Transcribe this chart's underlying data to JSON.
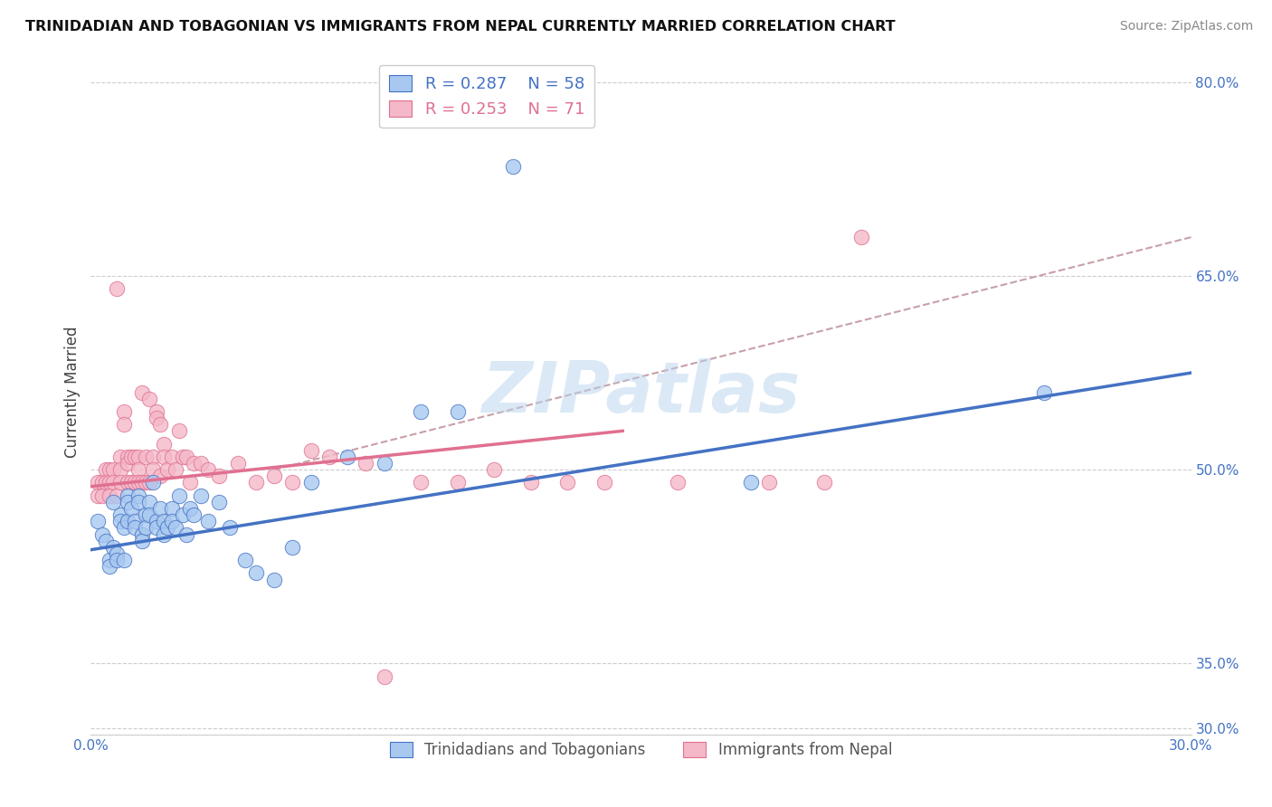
{
  "title": "TRINIDADIAN AND TOBAGONIAN VS IMMIGRANTS FROM NEPAL CURRENTLY MARRIED CORRELATION CHART",
  "source": "Source: ZipAtlas.com",
  "ylabel": "Currently Married",
  "xlim": [
    0.0,
    0.3
  ],
  "ylim": [
    0.295,
    0.825
  ],
  "xticks": [
    0.0,
    0.05,
    0.1,
    0.15,
    0.2,
    0.25,
    0.3
  ],
  "xticklabels": [
    "0.0%",
    "",
    "",
    "",
    "",
    "",
    "30.0%"
  ],
  "ytick_vals": [
    0.3,
    0.35,
    0.4,
    0.45,
    0.5,
    0.55,
    0.6,
    0.65,
    0.7,
    0.75,
    0.8
  ],
  "ytick_labels": [
    "30.0%",
    "35.0%",
    "",
    "",
    "50.0%",
    "",
    "",
    "65.0%",
    "",
    "",
    "80.0%"
  ],
  "blue_face": "#A8C8F0",
  "blue_edge": "#4472C4",
  "pink_face": "#F4B8C8",
  "pink_edge": "#E07090",
  "blue_line": "#4472C4",
  "pink_line": "#E07090",
  "dash_line": "#C8A0A8",
  "watermark": "ZIPatlas",
  "label_blue": "Trinidadians and Tobagonians",
  "label_pink": "Immigrants from Nepal",
  "blue_R": "0.287",
  "blue_N": "58",
  "pink_R": "0.253",
  "pink_N": "71",
  "blue_x": [
    0.002,
    0.003,
    0.004,
    0.005,
    0.005,
    0.006,
    0.006,
    0.007,
    0.007,
    0.008,
    0.008,
    0.009,
    0.009,
    0.01,
    0.01,
    0.01,
    0.011,
    0.012,
    0.012,
    0.013,
    0.013,
    0.014,
    0.014,
    0.015,
    0.015,
    0.016,
    0.016,
    0.017,
    0.018,
    0.018,
    0.019,
    0.02,
    0.02,
    0.021,
    0.022,
    0.022,
    0.023,
    0.024,
    0.025,
    0.026,
    0.027,
    0.028,
    0.03,
    0.032,
    0.035,
    0.038,
    0.042,
    0.045,
    0.05,
    0.055,
    0.06,
    0.07,
    0.08,
    0.09,
    0.1,
    0.115,
    0.18,
    0.26
  ],
  "blue_y": [
    0.46,
    0.45,
    0.445,
    0.43,
    0.425,
    0.475,
    0.44,
    0.435,
    0.43,
    0.465,
    0.46,
    0.455,
    0.43,
    0.48,
    0.475,
    0.46,
    0.47,
    0.46,
    0.455,
    0.48,
    0.475,
    0.45,
    0.445,
    0.465,
    0.455,
    0.475,
    0.465,
    0.49,
    0.46,
    0.455,
    0.47,
    0.46,
    0.45,
    0.455,
    0.47,
    0.46,
    0.455,
    0.48,
    0.465,
    0.45,
    0.47,
    0.465,
    0.48,
    0.46,
    0.475,
    0.455,
    0.43,
    0.42,
    0.415,
    0.44,
    0.49,
    0.51,
    0.505,
    0.545,
    0.545,
    0.735,
    0.49,
    0.56
  ],
  "pink_x": [
    0.002,
    0.002,
    0.003,
    0.003,
    0.004,
    0.004,
    0.005,
    0.005,
    0.005,
    0.006,
    0.006,
    0.007,
    0.007,
    0.008,
    0.008,
    0.008,
    0.009,
    0.009,
    0.01,
    0.01,
    0.01,
    0.011,
    0.011,
    0.012,
    0.012,
    0.013,
    0.013,
    0.013,
    0.014,
    0.014,
    0.015,
    0.015,
    0.016,
    0.016,
    0.017,
    0.017,
    0.018,
    0.018,
    0.019,
    0.019,
    0.02,
    0.02,
    0.021,
    0.022,
    0.023,
    0.024,
    0.025,
    0.026,
    0.027,
    0.028,
    0.03,
    0.032,
    0.035,
    0.04,
    0.045,
    0.05,
    0.055,
    0.06,
    0.065,
    0.075,
    0.08,
    0.09,
    0.1,
    0.11,
    0.12,
    0.13,
    0.14,
    0.16,
    0.185,
    0.2,
    0.21
  ],
  "pink_y": [
    0.49,
    0.48,
    0.49,
    0.48,
    0.5,
    0.49,
    0.5,
    0.49,
    0.48,
    0.5,
    0.49,
    0.64,
    0.48,
    0.51,
    0.5,
    0.49,
    0.545,
    0.535,
    0.51,
    0.505,
    0.49,
    0.51,
    0.49,
    0.51,
    0.49,
    0.51,
    0.5,
    0.49,
    0.56,
    0.49,
    0.51,
    0.49,
    0.555,
    0.49,
    0.51,
    0.5,
    0.545,
    0.54,
    0.535,
    0.495,
    0.52,
    0.51,
    0.5,
    0.51,
    0.5,
    0.53,
    0.51,
    0.51,
    0.49,
    0.505,
    0.505,
    0.5,
    0.495,
    0.505,
    0.49,
    0.495,
    0.49,
    0.515,
    0.51,
    0.505,
    0.34,
    0.49,
    0.49,
    0.5,
    0.49,
    0.49,
    0.49,
    0.49,
    0.49,
    0.49,
    0.68
  ],
  "blue_line_x0": 0.0,
  "blue_line_x1": 0.3,
  "blue_line_y0": 0.438,
  "blue_line_y1": 0.575,
  "pink_line_x0": 0.0,
  "pink_line_x1": 0.145,
  "pink_line_y0": 0.487,
  "pink_line_y1": 0.53,
  "dash_line_x0": 0.05,
  "dash_line_x1": 0.3,
  "dash_line_y0": 0.5,
  "dash_line_y1": 0.68
}
